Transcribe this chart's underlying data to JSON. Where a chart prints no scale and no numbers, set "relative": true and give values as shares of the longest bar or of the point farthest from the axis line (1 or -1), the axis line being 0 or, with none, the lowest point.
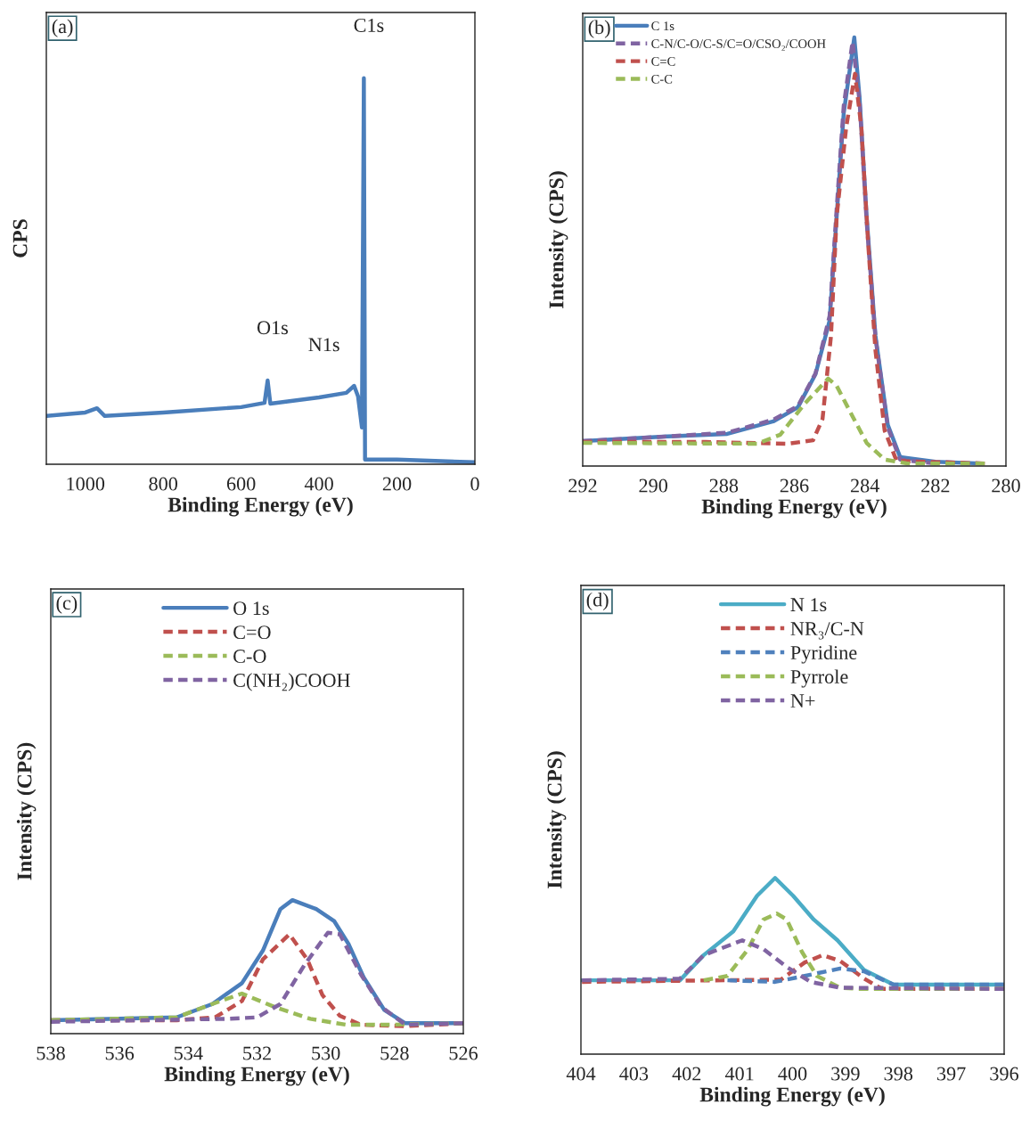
{
  "chart_data": [
    {
      "type": "line",
      "relative": true,
      "xlabel": "Binding Energy (eV)",
      "ylabel": "CPS",
      "xlim": [
        1100,
        0
      ],
      "xticks": [
        1000,
        800,
        600,
        400,
        200,
        0
      ],
      "tick_labels": "x",
      "legend": false,
      "grid": false,
      "annotations": [
        "(a)",
        {
          "text": "C1s",
          "x": 285,
          "y": 1.0
        },
        {
          "text": "O1s",
          "x": 532,
          "y": 0.217
        },
        {
          "text": "N1s",
          "x": 400,
          "y": 0.173
        }
      ],
      "series": [
        {
          "color": "#4a7ebb",
          "line_style": "solid",
          "x": [
            1100,
            1000,
            970,
            950,
            800,
            600,
            540,
            532,
            525,
            400,
            330,
            310,
            300,
            290,
            285,
            282,
            200,
            0
          ],
          "values": [
            0.125,
            0.134,
            0.145,
            0.125,
            0.134,
            0.148,
            0.159,
            0.217,
            0.157,
            0.173,
            0.185,
            0.203,
            0.176,
            0.095,
            1.0,
            0.012,
            0.012,
            0.005
          ]
        }
      ]
    },
    {
      "type": "line",
      "relative": true,
      "xlabel": "Binding Energy (eV)",
      "ylabel": "Intensity (CPS)",
      "xlim": [
        292,
        280
      ],
      "xticks": [
        292,
        290,
        288,
        286,
        284,
        282,
        280
      ],
      "tick_labels": "x",
      "legend": "top left",
      "grid": false,
      "annotations": [
        "(b)"
      ],
      "series": [
        {
          "name": "C 1s",
          "color": "#4a7ebb",
          "line_style": "solid",
          "x": [
            292.0,
            289.6,
            287.9,
            286.6,
            285.9,
            285.4,
            285.0,
            284.8,
            284.6,
            284.3,
            284.15,
            283.95,
            283.7,
            283.35,
            283.0,
            282.0,
            280.7
          ],
          "values": [
            0.058,
            0.069,
            0.075,
            0.104,
            0.137,
            0.214,
            0.339,
            0.582,
            0.823,
            1.0,
            0.859,
            0.582,
            0.304,
            0.096,
            0.021,
            0.01,
            0.006
          ]
        },
        {
          "name": "C-N/C-O/C-S/C=O/CSO₂/COOH",
          "color": "#8064a2",
          "line_style": "dashed",
          "x": [
            292.0,
            289.6,
            287.9,
            286.6,
            285.9,
            285.4,
            285.0,
            284.8,
            284.6,
            284.35,
            284.15,
            283.95,
            283.7,
            283.35,
            283.0,
            282.0
          ],
          "values": [
            0.058,
            0.069,
            0.078,
            0.108,
            0.14,
            0.216,
            0.35,
            0.6,
            0.84,
            0.99,
            0.85,
            0.57,
            0.3,
            0.09,
            0.015,
            0.006
          ]
        },
        {
          "name": "C=C",
          "color": "#c0504d",
          "line_style": "dashed",
          "x": [
            292.0,
            288.5,
            286.2,
            285.47,
            285.2,
            284.96,
            284.8,
            284.53,
            284.28,
            284.1,
            283.9,
            283.7,
            283.44,
            283.1,
            280.6
          ],
          "values": [
            0.056,
            0.056,
            0.052,
            0.06,
            0.11,
            0.304,
            0.582,
            0.79,
            0.915,
            0.79,
            0.511,
            0.27,
            0.083,
            0.012,
            0.006
          ]
        },
        {
          "name": "C-C",
          "color": "#9bbb59",
          "line_style": "dashed",
          "x": [
            292.0,
            287.06,
            286.4,
            285.7,
            285.04,
            284.8,
            284.35,
            283.95,
            283.44,
            282.8,
            280.6
          ],
          "values": [
            0.054,
            0.052,
            0.073,
            0.146,
            0.204,
            0.187,
            0.116,
            0.054,
            0.015,
            0.006,
            0.006
          ]
        }
      ]
    },
    {
      "type": "line",
      "relative": true,
      "xlabel": "Binding Energy (eV)",
      "ylabel": "Intensity (CPS)",
      "xlim": [
        538,
        526
      ],
      "xticks": [
        538,
        536,
        534,
        532,
        530,
        528,
        526
      ],
      "tick_labels": "x",
      "legend": "top",
      "grid": false,
      "annotations": [
        "(c)"
      ],
      "series": [
        {
          "name": "O 1s",
          "color": "#4a7ebb",
          "line_style": "solid",
          "x": [
            538.0,
            534.34,
            533.3,
            532.44,
            531.83,
            531.32,
            530.97,
            530.28,
            529.76,
            529.33,
            528.9,
            528.3,
            527.69,
            526.0
          ],
          "values": [
            0.1,
            0.122,
            0.222,
            0.378,
            0.622,
            0.933,
            1.0,
            0.933,
            0.844,
            0.667,
            0.422,
            0.178,
            0.078,
            0.078
          ]
        },
        {
          "name": "C=O",
          "color": "#c0504d",
          "line_style": "dashed",
          "x": [
            538.0,
            534.34,
            533.22,
            532.44,
            531.83,
            531.06,
            530.54,
            530.1,
            529.59,
            528.98,
            527.69,
            526.0
          ],
          "values": [
            0.1,
            0.1,
            0.122,
            0.244,
            0.556,
            0.744,
            0.556,
            0.289,
            0.133,
            0.067,
            0.056,
            0.078
          ]
        },
        {
          "name": "C-O",
          "color": "#9bbb59",
          "line_style": "dashed",
          "x": [
            538.0,
            534.34,
            533.3,
            532.44,
            531.49,
            530.45,
            529.42,
            528.12,
            526.0
          ],
          "values": [
            0.1,
            0.122,
            0.222,
            0.3,
            0.2,
            0.111,
            0.067,
            0.067,
            0.078
          ]
        },
        {
          "name": "C(NH₂)COOH",
          "color": "#8064a2",
          "line_style": "dashed",
          "x": [
            538.0,
            532.87,
            532.0,
            531.32,
            530.63,
            529.94,
            529.59,
            528.98,
            528.38,
            527.69,
            526.0
          ],
          "values": [
            0.089,
            0.111,
            0.122,
            0.222,
            0.511,
            0.756,
            0.744,
            0.444,
            0.2,
            0.067,
            0.078
          ]
        }
      ]
    },
    {
      "type": "line",
      "relative": true,
      "xlabel": "Binding Energy (eV)",
      "ylabel": "Intensity (CPS)",
      "xlim": [
        404,
        396
      ],
      "xticks": [
        404,
        403,
        402,
        401,
        400,
        399,
        398,
        397,
        396
      ],
      "tick_labels": "x",
      "legend": "top",
      "grid": false,
      "annotations": [
        "(d)"
      ],
      "series": [
        {
          "name": "N 1s",
          "color": "#4bacc6",
          "line_style": "solid",
          "x": [
            403.98,
            402.13,
            401.68,
            401.12,
            400.67,
            400.33,
            399.99,
            399.6,
            399.15,
            398.65,
            398.09,
            396.0
          ],
          "values": [
            0.419,
            0.419,
            0.562,
            0.697,
            0.899,
            1.0,
            0.899,
            0.764,
            0.646,
            0.478,
            0.394,
            0.394
          ]
        },
        {
          "name": "NR₃/C-N",
          "color": "#c0504d",
          "line_style": "dashed",
          "x": [
            403.98,
            400.22,
            399.77,
            399.43,
            399.1,
            398.65,
            398.31,
            396.0
          ],
          "values": [
            0.41,
            0.423,
            0.52,
            0.562,
            0.529,
            0.429,
            0.37,
            0.37
          ]
        },
        {
          "name": "Pyridine",
          "color": "#4f81bd",
          "line_style": "dashed",
          "x": [
            401.23,
            400.33,
            399.77,
            399.1,
            398.65,
            398.09,
            396.0
          ],
          "values": [
            0.419,
            0.41,
            0.444,
            0.486,
            0.47,
            0.394,
            0.394
          ]
        },
        {
          "name": "Pyrrole",
          "color": "#9bbb59",
          "line_style": "dashed",
          "x": [
            401.68,
            401.23,
            400.84,
            400.55,
            400.3,
            400.11,
            399.82,
            399.54,
            399.1,
            398.7,
            396.0
          ],
          "values": [
            0.419,
            0.444,
            0.596,
            0.764,
            0.798,
            0.764,
            0.579,
            0.444,
            0.377,
            0.37,
            0.37
          ]
        },
        {
          "name": "N+",
          "color": "#8064a2",
          "line_style": "dashed",
          "x": [
            403.98,
            402.13,
            401.68,
            400.95,
            400.55,
            400.11,
            399.66,
            399.1,
            396.0
          ],
          "values": [
            0.419,
            0.428,
            0.562,
            0.646,
            0.596,
            0.495,
            0.41,
            0.377,
            0.37
          ]
        }
      ]
    }
  ]
}
